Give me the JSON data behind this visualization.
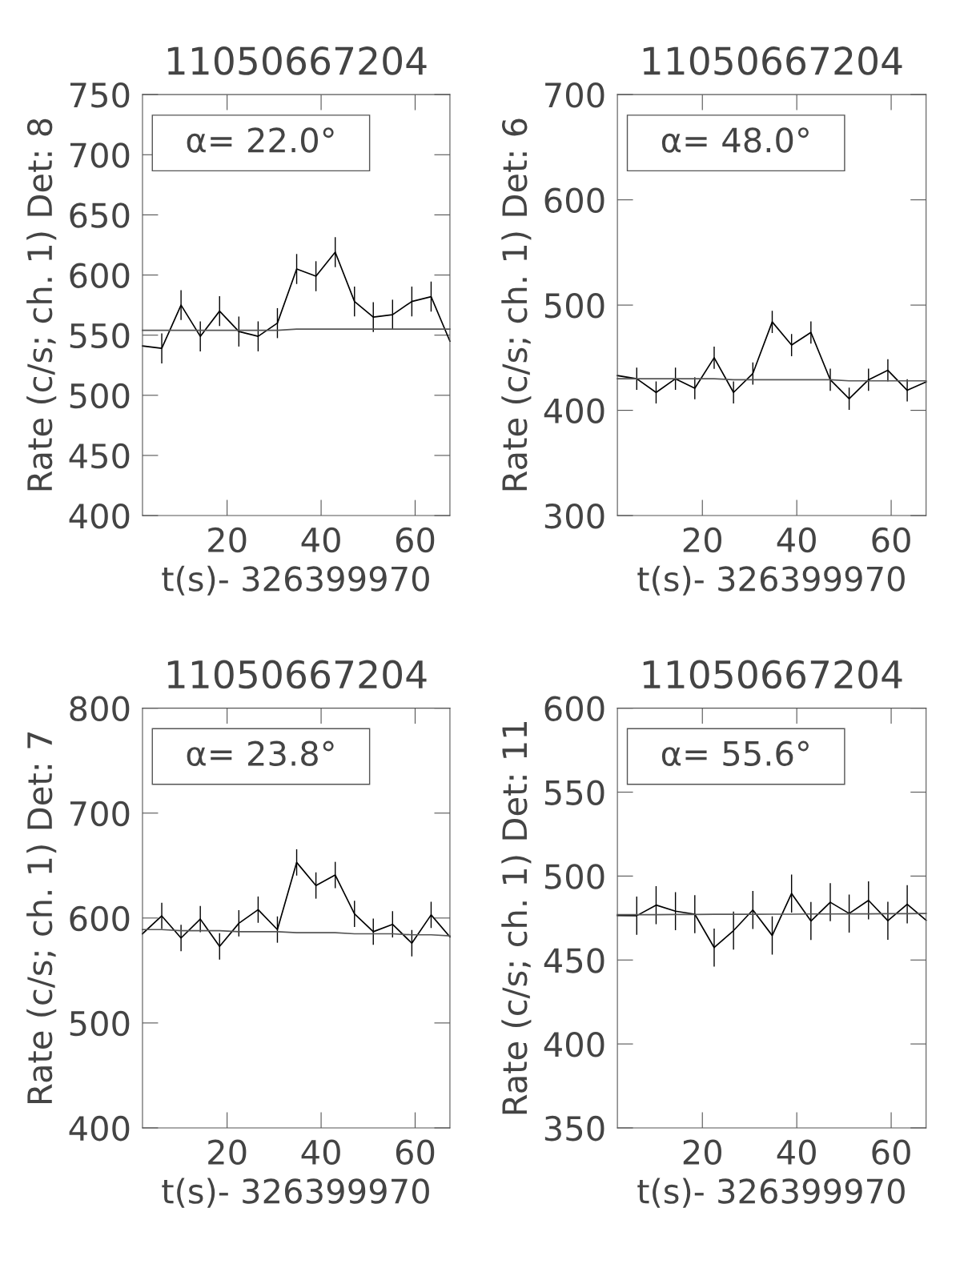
{
  "chart_data": [
    {
      "type": "line",
      "title": "11050667204",
      "xlabel": "t(s)- 326399970",
      "ylabel": "Rate (c/s; ch. 1) Det: 8",
      "annotations": [
        "α= 22.0°"
      ],
      "xlim": [
        2.0,
        67.4
      ],
      "ylim": [
        400,
        750
      ],
      "xticks": [
        20,
        40,
        60
      ],
      "yticks": [
        400,
        450,
        500,
        550,
        600,
        650,
        700,
        750
      ],
      "x": [
        2.0,
        6.1,
        10.2,
        14.3,
        18.4,
        22.5,
        26.6,
        30.7,
        34.8,
        38.9,
        43.0,
        47.1,
        51.1,
        55.2,
        59.3,
        63.4,
        67.4
      ],
      "series": [
        {
          "color": "#000000",
          "values": [
            541,
            539,
            575,
            549,
            570,
            553,
            549,
            560,
            605,
            599,
            619,
            578,
            565,
            567,
            578,
            582,
            545
          ],
          "errors": [
            null,
            12,
            12,
            12,
            12,
            12,
            12,
            12,
            12,
            12,
            12,
            12,
            12,
            12,
            12,
            12,
            null
          ]
        },
        {
          "type": "line",
          "color": "#555555",
          "values": [
            554,
            554,
            554,
            554,
            554,
            554,
            554,
            554,
            555,
            555,
            555,
            555,
            555,
            555,
            555,
            555,
            555
          ]
        }
      ]
    },
    {
      "type": "line",
      "title": "11050667204",
      "xlabel": "t(s)- 326399970",
      "ylabel": "Rate (c/s; ch. 1) Det: 6",
      "annotations": [
        "α= 48.0°"
      ],
      "xlim": [
        2.0,
        67.4
      ],
      "ylim": [
        300,
        700
      ],
      "xticks": [
        20,
        40,
        60
      ],
      "yticks": [
        300,
        400,
        500,
        600,
        700
      ],
      "x": [
        2.0,
        6.1,
        10.2,
        14.3,
        18.4,
        22.5,
        26.6,
        30.7,
        34.8,
        38.9,
        43.0,
        47.1,
        51.1,
        55.2,
        59.3,
        63.4,
        67.4
      ],
      "series": [
        {
          "color": "#000000",
          "values": [
            433,
            430,
            417,
            430,
            421,
            450,
            417,
            435,
            484,
            462,
            474,
            429,
            411,
            429,
            438,
            419,
            427
          ],
          "errors": [
            null,
            10,
            10,
            10,
            10,
            10,
            10,
            10,
            10,
            10,
            10,
            10,
            10,
            10,
            10,
            10,
            null
          ]
        },
        {
          "type": "line",
          "color": "#555555",
          "values": [
            430,
            430,
            430,
            430,
            430,
            430,
            429,
            429,
            429,
            429,
            429,
            429,
            428,
            428,
            428,
            428,
            428
          ]
        }
      ]
    },
    {
      "type": "line",
      "title": "11050667204",
      "xlabel": "t(s)- 326399970",
      "ylabel": "Rate (c/s; ch. 1) Det: 7",
      "annotations": [
        "α= 23.8°"
      ],
      "xlim": [
        2.0,
        67.4
      ],
      "ylim": [
        400,
        800
      ],
      "xticks": [
        20,
        40,
        60
      ],
      "yticks": [
        400,
        500,
        600,
        700,
        800
      ],
      "x": [
        2.0,
        6.1,
        10.2,
        14.3,
        18.4,
        22.5,
        26.6,
        30.7,
        34.8,
        38.9,
        43.0,
        47.1,
        51.1,
        55.2,
        59.3,
        63.4,
        67.4
      ],
      "series": [
        {
          "color": "#000000",
          "values": [
            585,
            602,
            581,
            599,
            573,
            595,
            608,
            589,
            653,
            631,
            641,
            604,
            587,
            594,
            576,
            603,
            582
          ],
          "errors": [
            null,
            12,
            12,
            12,
            12,
            12,
            12,
            12,
            12,
            12,
            12,
            12,
            12,
            12,
            12,
            12,
            null
          ]
        },
        {
          "type": "line",
          "color": "#555555",
          "values": [
            589,
            589,
            588,
            588,
            588,
            587,
            587,
            587,
            586,
            586,
            586,
            585,
            585,
            585,
            584,
            584,
            583
          ]
        }
      ]
    },
    {
      "type": "line",
      "title": "11050667204",
      "xlabel": "t(s)- 326399970",
      "ylabel": "Rate (c/s; ch. 1) Det: 11",
      "annotations": [
        "α= 55.6°"
      ],
      "xlim": [
        2.0,
        67.4
      ],
      "ylim": [
        350,
        600
      ],
      "xticks": [
        20,
        40,
        60
      ],
      "yticks": [
        350,
        400,
        450,
        500,
        550,
        600
      ],
      "x": [
        2.0,
        6.1,
        10.2,
        14.3,
        18.4,
        22.5,
        26.6,
        30.7,
        34.8,
        38.9,
        43.0,
        47.1,
        51.1,
        55.2,
        59.3,
        63.4,
        67.4
      ],
      "series": [
        {
          "color": "#000000",
          "values": [
            476.5,
            476.4,
            482.7,
            479.1,
            477.3,
            457.4,
            467.5,
            479.8,
            464.6,
            489.6,
            473.2,
            484.4,
            477.7,
            485.5,
            473.4,
            483.2,
            473.7
          ],
          "errors": [
            null,
            11,
            11,
            11,
            11,
            11,
            11,
            11,
            11,
            11,
            11,
            11,
            11,
            11,
            11,
            11,
            null
          ]
        },
        {
          "type": "line",
          "color": "#555555",
          "values": [
            477.0,
            477.0,
            477.0,
            477.1,
            477.1,
            477.2,
            477.2,
            477.2,
            477.3,
            477.3,
            477.4,
            477.4,
            477.5,
            477.5,
            477.6,
            477.6,
            477.7
          ]
        }
      ]
    }
  ]
}
